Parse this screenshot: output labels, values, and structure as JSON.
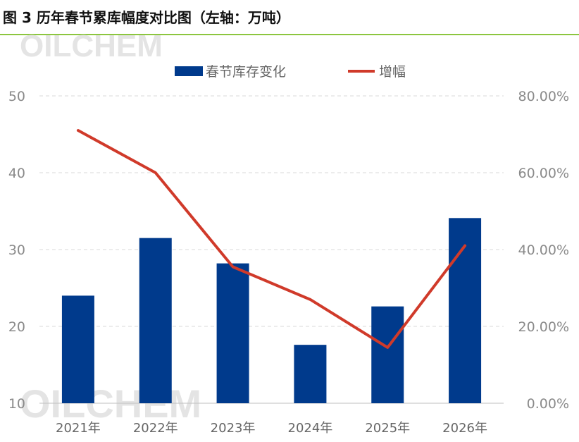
{
  "title": "图 3 历年春节累库幅度对比图（左轴：万吨）",
  "watermark": "OILCHEM",
  "colors": {
    "bar": "#003a8c",
    "line": "#d03a2a",
    "grid": "#d9d9d9",
    "accent": "#8cc63f"
  },
  "chart_data": {
    "type": "bar",
    "categories": [
      "2021年",
      "2022年",
      "2023年",
      "2024年",
      "2025年",
      "2026年"
    ],
    "series": [
      {
        "name": "春节库存变化",
        "type": "bar",
        "axis": "left",
        "values": [
          24.0,
          31.5,
          28.2,
          17.6,
          22.6,
          34.1
        ]
      },
      {
        "name": "增幅",
        "type": "line",
        "axis": "right",
        "values": [
          0.71,
          0.6,
          0.355,
          0.27,
          0.145,
          0.41
        ]
      }
    ],
    "y_left": {
      "min": 10,
      "max": 50,
      "ticks": [
        "10",
        "20",
        "30",
        "40",
        "50"
      ]
    },
    "y_right": {
      "min": 0,
      "max": 0.8,
      "ticks": [
        "0.00%",
        "20.00%",
        "40.00%",
        "60.00%",
        "80.00%"
      ]
    },
    "legend_position": "top",
    "grid": true
  }
}
